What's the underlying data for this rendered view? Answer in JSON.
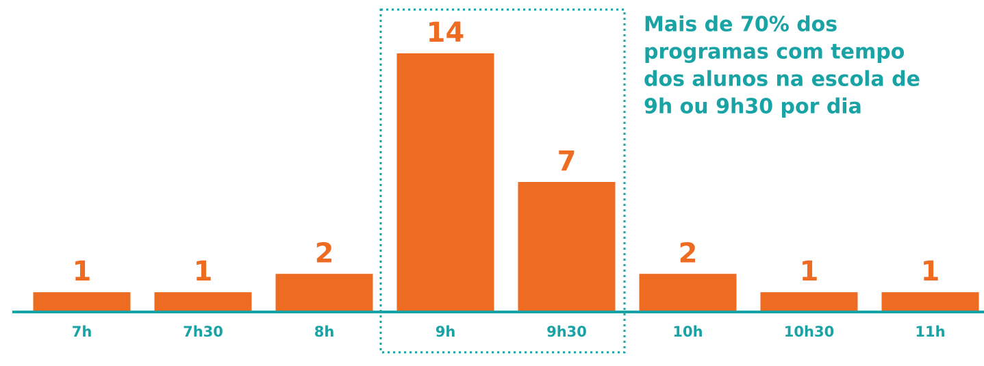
{
  "chart_data": {
    "type": "bar",
    "categories": [
      "7h",
      "7h30",
      "8h",
      "9h",
      "9h30",
      "10h",
      "10h30",
      "11h"
    ],
    "values": [
      1,
      1,
      2,
      14,
      7,
      2,
      1,
      1
    ],
    "color": "#ee6b22",
    "annotation": [
      "Mais de 70% dos",
      "programas com tempo",
      "dos alunos na escola de",
      "9h ou 9h30 por dia"
    ]
  }
}
